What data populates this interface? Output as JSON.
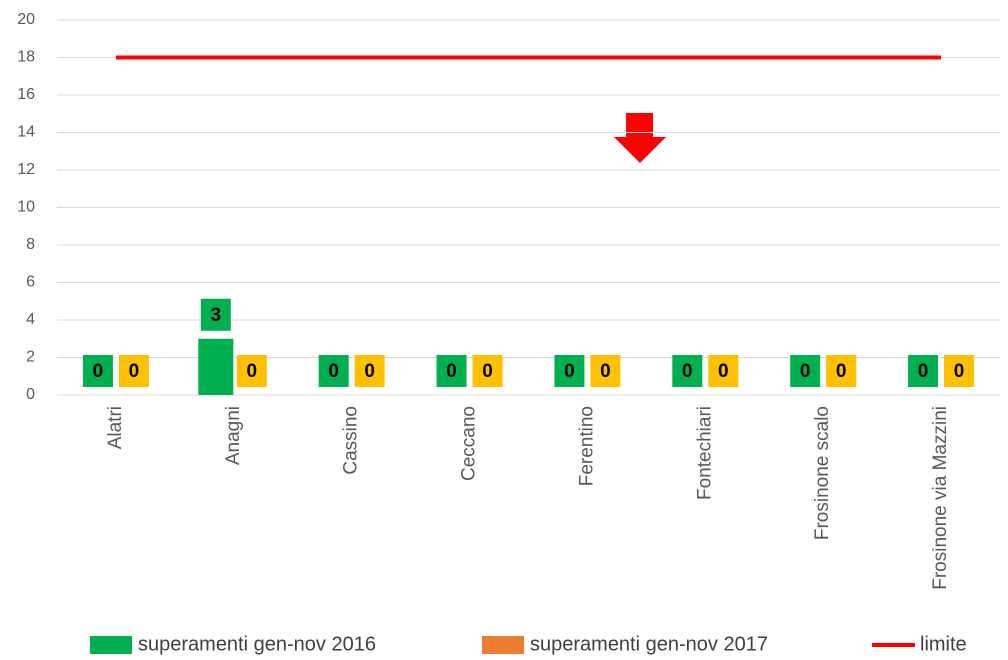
{
  "chart_data": {
    "type": "bar",
    "categories": [
      "Alatri",
      "Anagni",
      "Cassino",
      "Ceccano",
      "Ferentino",
      "Fontechiari",
      "Frosinone scalo",
      "Frosinone via Mazzini"
    ],
    "series": [
      {
        "name": "superamenti gen-nov 2016",
        "color": "#00b050",
        "label_color": "#00b050",
        "values": [
          0,
          3,
          0,
          0,
          0,
          0,
          0,
          0
        ]
      },
      {
        "name": "superamenti gen-nov 2017",
        "color": "#ed7d31",
        "label_color": "#ffc000",
        "values": [
          0,
          0,
          0,
          0,
          0,
          0,
          0,
          0
        ]
      },
      {
        "name": "limite",
        "type": "line",
        "color": "#ff0000",
        "values": [
          18,
          18,
          18,
          18,
          18,
          18,
          18,
          18
        ]
      }
    ],
    "ylim": [
      0,
      20
    ],
    "yticks": [
      0,
      2,
      4,
      6,
      8,
      10,
      12,
      14,
      16,
      18,
      20
    ],
    "grid": true,
    "legend": "bottom"
  }
}
